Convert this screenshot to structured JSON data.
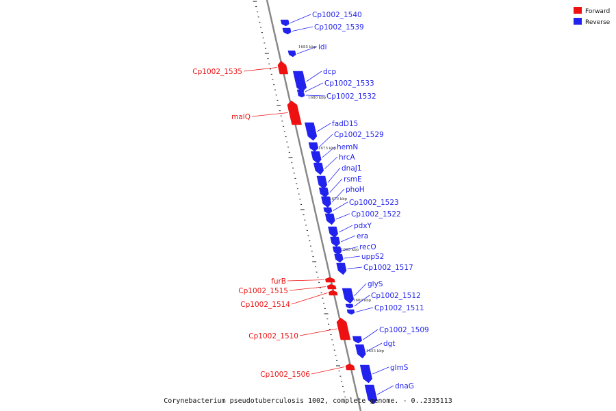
{
  "caption": "Corynebacterium pseudotuberculosis 1002, complete genome. - 0..2335113",
  "colors": {
    "forward": "#ee1111",
    "reverse": "#2222ee",
    "axis": "#888888",
    "tick": "#111111"
  },
  "legend": [
    {
      "label": "Forward",
      "color": "#ee1111"
    },
    {
      "label": "Reverse",
      "color": "#2222ee"
    }
  ],
  "kbp_markers": [
    "1685 kbp",
    "1680 kbp",
    "1675 kbp",
    "1670 kbp",
    "1665 kbp",
    "1660 kbp",
    "1655 kbp"
  ],
  "genes": [
    {
      "name": "Cp1002_1540",
      "strand": "reverse"
    },
    {
      "name": "Cp1002_1539",
      "strand": "reverse"
    },
    {
      "name": "idi",
      "strand": "reverse"
    },
    {
      "name": "Cp1002_1535",
      "strand": "forward"
    },
    {
      "name": "dcp",
      "strand": "reverse"
    },
    {
      "name": "Cp1002_1533",
      "strand": "reverse"
    },
    {
      "name": "Cp1002_1532",
      "strand": "reverse"
    },
    {
      "name": "malQ",
      "strand": "forward"
    },
    {
      "name": "fadD15",
      "strand": "reverse"
    },
    {
      "name": "Cp1002_1529",
      "strand": "reverse"
    },
    {
      "name": "hemN",
      "strand": "reverse"
    },
    {
      "name": "hrcA",
      "strand": "reverse"
    },
    {
      "name": "dnaJ1",
      "strand": "reverse"
    },
    {
      "name": "rsmE",
      "strand": "reverse"
    },
    {
      "name": "phoH",
      "strand": "reverse"
    },
    {
      "name": "Cp1002_1523",
      "strand": "reverse"
    },
    {
      "name": "Cp1002_1522",
      "strand": "reverse"
    },
    {
      "name": "pdxY",
      "strand": "reverse"
    },
    {
      "name": "era",
      "strand": "reverse"
    },
    {
      "name": "recO",
      "strand": "reverse"
    },
    {
      "name": "uppS2",
      "strand": "reverse"
    },
    {
      "name": "Cp1002_1517",
      "strand": "reverse"
    },
    {
      "name": "furB",
      "strand": "forward"
    },
    {
      "name": "Cp1002_1515",
      "strand": "forward"
    },
    {
      "name": "Cp1002_1514",
      "strand": "forward"
    },
    {
      "name": "glyS",
      "strand": "reverse"
    },
    {
      "name": "Cp1002_1512",
      "strand": "reverse"
    },
    {
      "name": "Cp1002_1511",
      "strand": "reverse"
    },
    {
      "name": "Cp1002_1510",
      "strand": "forward"
    },
    {
      "name": "Cp1002_1509",
      "strand": "reverse"
    },
    {
      "name": "dgt",
      "strand": "reverse"
    },
    {
      "name": "glmS",
      "strand": "reverse"
    },
    {
      "name": "Cp1002_1506",
      "strand": "forward"
    },
    {
      "name": "dnaG",
      "strand": "reverse"
    }
  ]
}
